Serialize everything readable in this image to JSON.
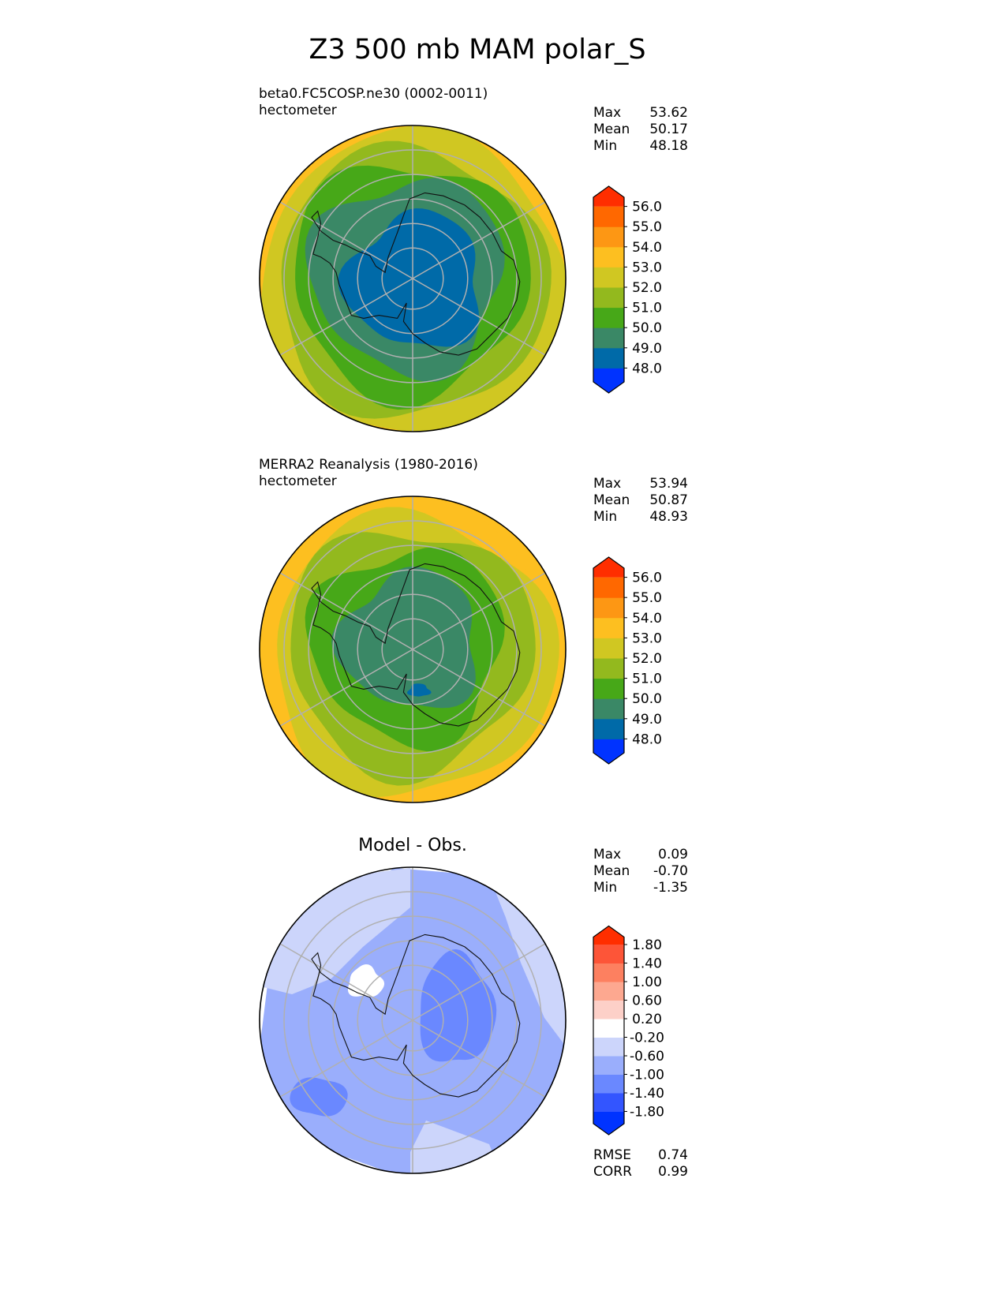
{
  "title": "Z3 500 mb MAM polar_S",
  "stat_labels": {
    "max": "Max",
    "mean": "Mean",
    "min": "Min",
    "rmse": "RMSE",
    "corr": "CORR"
  },
  "chart_data": [
    {
      "type": "contour",
      "projection": "south-polar-stereographic",
      "label": "beta0.FC5COSP.ne30 (0002-0011)",
      "units": "hectometer",
      "stats": {
        "max": "53.62",
        "mean": "50.17",
        "min": "48.18"
      },
      "levels": [
        "48.0",
        "49.0",
        "50.0",
        "51.0",
        "52.0",
        "53.0",
        "54.0",
        "55.0",
        "56.0"
      ],
      "colors": [
        "#0033ff",
        "#006aa8",
        "#3a8866",
        "#47a818",
        "#93b91e",
        "#d0c722",
        "#fdbf20",
        "#fd9714",
        "#ff6800",
        "#ff2e00"
      ],
      "fields": [
        {
          "level": "52.0",
          "color": "#d0c722"
        },
        {
          "level": "51.0",
          "color": "#93b91e"
        },
        {
          "level": "50.0",
          "color": "#47a818"
        },
        {
          "level": "49.0",
          "color": "#3a8866"
        },
        {
          "level": "48.0",
          "color": "#006aa8"
        }
      ],
      "extend": "both"
    },
    {
      "type": "contour",
      "projection": "south-polar-stereographic",
      "label": "MERRA2 Reanalysis (1980-2016)",
      "units": "hectometer",
      "stats": {
        "max": "53.94",
        "mean": "50.87",
        "min": "48.93"
      },
      "levels": [
        "48.0",
        "49.0",
        "50.0",
        "51.0",
        "52.0",
        "53.0",
        "54.0",
        "55.0",
        "56.0"
      ],
      "colors": [
        "#0033ff",
        "#006aa8",
        "#3a8866",
        "#47a818",
        "#93b91e",
        "#d0c722",
        "#fdbf20",
        "#fd9714",
        "#ff6800",
        "#ff2e00"
      ],
      "fields": [
        {
          "level": "53.0",
          "color": "#fdbf20"
        },
        {
          "level": "52.0",
          "color": "#d0c722"
        },
        {
          "level": "51.0",
          "color": "#93b91e"
        },
        {
          "level": "50.0",
          "color": "#47a818"
        },
        {
          "level": "49.0",
          "color": "#3a8866"
        },
        {
          "level": "48.0",
          "color": "#006aa8"
        }
      ],
      "extend": "both"
    },
    {
      "type": "contour",
      "projection": "south-polar-stereographic",
      "title": "Model - Obs.",
      "stats": {
        "max": "0.09",
        "mean": "-0.70",
        "min": "-1.35"
      },
      "levels": [
        "-1.80",
        "-1.40",
        "-1.00",
        "-0.60",
        "-0.20",
        "0.20",
        "0.60",
        "1.00",
        "1.40",
        "1.80"
      ],
      "colors": [
        "#0033ff",
        "#3355ff",
        "#6a88ff",
        "#9aaefc",
        "#ccd5fb",
        "#ffffff",
        "#fdd0c8",
        "#fda890",
        "#fd8060",
        "#fd5538",
        "#ff2e00"
      ],
      "fields": [
        {
          "level": "-0.20",
          "color": "#ccd5fb"
        },
        {
          "level": "-0.60",
          "color": "#9aaefc"
        },
        {
          "level": "-1.00",
          "color": "#6a88ff"
        }
      ],
      "extend": "both",
      "rmse": "0.74",
      "corr": "0.99"
    }
  ]
}
